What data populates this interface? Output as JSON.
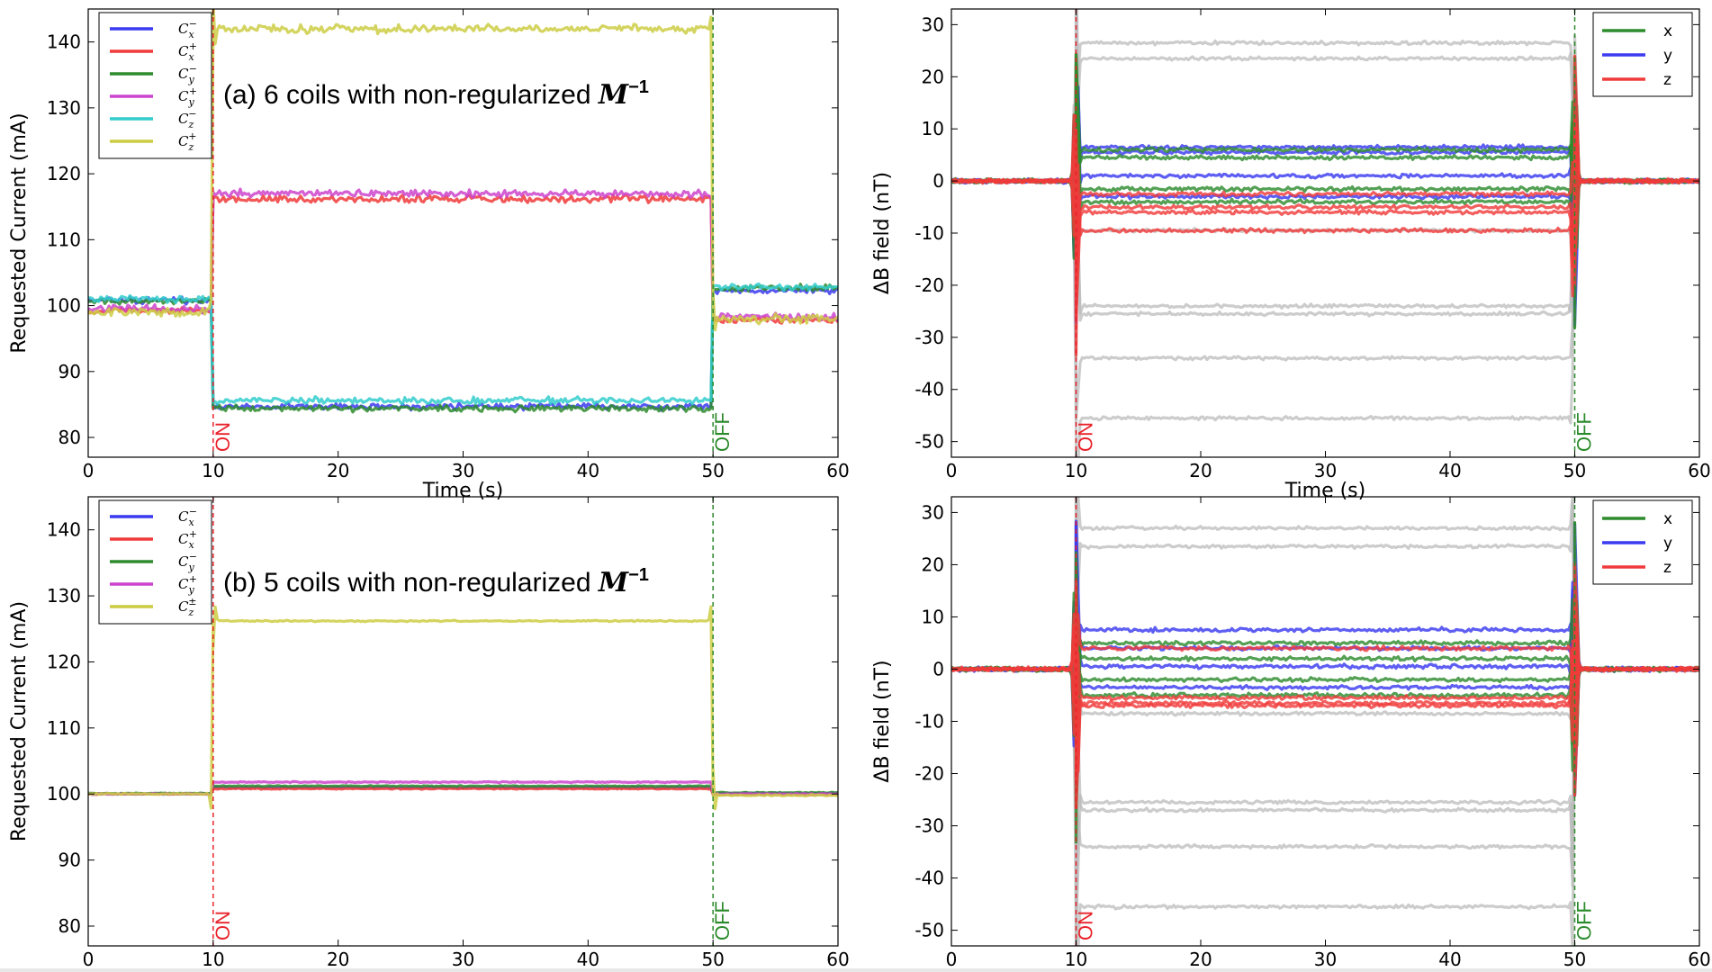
{
  "chart_data": [
    {
      "type": "line",
      "panel": "a-current",
      "annotation": "(a) 6 coils with non-regularized ",
      "annotation_math": "M",
      "annotation_sup": "−1",
      "xlabel": "Time (s)",
      "ylabel": "Requested Current (mA)",
      "xlim": [
        0,
        60
      ],
      "ylim": [
        77,
        145
      ],
      "xticks": [
        0,
        10,
        20,
        30,
        40,
        50,
        60
      ],
      "yticks": [
        80,
        90,
        100,
        110,
        120,
        130,
        140
      ],
      "grid": false,
      "legend_position": "top-left",
      "markers": [
        {
          "x": 10,
          "label": "ON",
          "color": "#e8222a"
        },
        {
          "x": 50,
          "label": "OFF",
          "color": "#2a8a2a"
        }
      ],
      "series": [
        {
          "name": "C",
          "sub": "x",
          "sup": "−",
          "color": "#3b3bf0",
          "before": 100.8,
          "during": 84.7,
          "after": 102.3,
          "noise": 0.7
        },
        {
          "name": "C",
          "sub": "x",
          "sup": "+",
          "color": "#f03b3b",
          "before": 99.2,
          "during": 116.2,
          "after": 97.8,
          "noise": 0.8
        },
        {
          "name": "C",
          "sub": "y",
          "sup": "−",
          "color": "#2e8b2e",
          "before": 100.6,
          "during": 84.4,
          "after": 102.6,
          "noise": 0.7
        },
        {
          "name": "C",
          "sub": "y",
          "sup": "+",
          "color": "#cc44cc",
          "before": 99.5,
          "during": 117.0,
          "after": 98.3,
          "noise": 0.8
        },
        {
          "name": "C",
          "sub": "z",
          "sup": "−",
          "color": "#33cccc",
          "before": 101.0,
          "during": 85.6,
          "after": 102.8,
          "noise": 0.7
        },
        {
          "name": "C",
          "sub": "z",
          "sup": "+",
          "color": "#cccc44",
          "before": 99.0,
          "during": 142.0,
          "after": 98.0,
          "noise": 0.9
        }
      ]
    },
    {
      "type": "line",
      "panel": "a-field",
      "xlabel": "Time (s)",
      "ylabel": "ΔB field (nT)",
      "xlim": [
        0,
        60
      ],
      "ylim": [
        -53,
        33
      ],
      "xticks": [
        0,
        10,
        20,
        30,
        40,
        50,
        60
      ],
      "yticks": [
        -50,
        -40,
        -30,
        -20,
        -10,
        0,
        10,
        20,
        30
      ],
      "grid": false,
      "legend_position": "top-right",
      "markers": [
        {
          "x": 10,
          "label": "ON",
          "color": "#e8222a"
        },
        {
          "x": 50,
          "label": "OFF",
          "color": "#2a8a2a"
        }
      ],
      "legend": [
        {
          "name": "x",
          "color": "#2e8b2e"
        },
        {
          "name": "y",
          "color": "#3b3bf0"
        },
        {
          "name": "z",
          "color": "#f03b3b"
        }
      ],
      "traces": [
        {
          "color": "#bbbbbb",
          "level": 26.5
        },
        {
          "color": "#bbbbbb",
          "level": 23.5
        },
        {
          "color": "#bbbbbb",
          "level": -9.5
        },
        {
          "color": "#bbbbbb",
          "level": -24.0
        },
        {
          "color": "#bbbbbb",
          "level": -25.5
        },
        {
          "color": "#bbbbbb",
          "level": -34.0
        },
        {
          "color": "#bbbbbb",
          "level": -45.5
        },
        {
          "color": "#3b3bf0",
          "level": 6.5
        },
        {
          "color": "#3b3bf0",
          "level": 5.5
        },
        {
          "color": "#3b3bf0",
          "level": 1.0
        },
        {
          "color": "#3b3bf0",
          "level": -3.0
        },
        {
          "color": "#2e8b2e",
          "level": 6.0
        },
        {
          "color": "#2e8b2e",
          "level": 4.5
        },
        {
          "color": "#2e8b2e",
          "level": -1.5
        },
        {
          "color": "#2e8b2e",
          "level": -4.0
        },
        {
          "color": "#f03b3b",
          "level": -2.5
        },
        {
          "color": "#f03b3b",
          "level": -5.0
        },
        {
          "color": "#f03b3b",
          "level": -6.0
        },
        {
          "color": "#f03b3b",
          "level": -9.5
        }
      ]
    },
    {
      "type": "line",
      "panel": "b-current",
      "annotation": "(b) 5 coils with non-regularized ",
      "annotation_math": "M",
      "annotation_sup": "−1",
      "xlabel": "Time (s)",
      "ylabel": "Requested Current (mA)",
      "xlim": [
        0,
        60
      ],
      "ylim": [
        77,
        145
      ],
      "xticks": [
        0,
        10,
        20,
        30,
        40,
        50,
        60
      ],
      "yticks": [
        80,
        90,
        100,
        110,
        120,
        130,
        140
      ],
      "grid": false,
      "legend_position": "top-left",
      "markers": [
        {
          "x": 10,
          "label": "ON",
          "color": "#e8222a"
        },
        {
          "x": 50,
          "label": "OFF",
          "color": "#2a8a2a"
        }
      ],
      "series": [
        {
          "name": "C",
          "sub": "x",
          "sup": "−",
          "color": "#3b3bf0",
          "before": 100.0,
          "during": 101.0,
          "after": 100.1,
          "noise": 0.12
        },
        {
          "name": "C",
          "sub": "x",
          "sup": "+",
          "color": "#f03b3b",
          "before": 100.0,
          "during": 100.8,
          "after": 99.9,
          "noise": 0.12
        },
        {
          "name": "C",
          "sub": "y",
          "sup": "−",
          "color": "#2e8b2e",
          "before": 100.1,
          "during": 101.2,
          "after": 100.2,
          "noise": 0.12
        },
        {
          "name": "C",
          "sub": "y",
          "sup": "+",
          "color": "#cc44cc",
          "before": 100.0,
          "during": 101.8,
          "after": 100.0,
          "noise": 0.12
        },
        {
          "name": "C",
          "sub": "z",
          "sup": "±",
          "color": "#cccc44",
          "before": 100.0,
          "during": 126.2,
          "after": 99.8,
          "noise": 0.15
        }
      ]
    },
    {
      "type": "line",
      "panel": "b-field",
      "xlabel": "Time (s)",
      "ylabel": "ΔB field (nT)",
      "xlim": [
        0,
        60
      ],
      "ylim": [
        -53,
        33
      ],
      "xticks": [
        0,
        10,
        20,
        30,
        40,
        50,
        60
      ],
      "yticks": [
        -50,
        -40,
        -30,
        -20,
        -10,
        0,
        10,
        20,
        30
      ],
      "grid": false,
      "legend_position": "top-right",
      "markers": [
        {
          "x": 10,
          "label": "ON",
          "color": "#e8222a"
        },
        {
          "x": 50,
          "label": "OFF",
          "color": "#2a8a2a"
        }
      ],
      "legend": [
        {
          "name": "x",
          "color": "#2e8b2e"
        },
        {
          "name": "y",
          "color": "#3b3bf0"
        },
        {
          "name": "z",
          "color": "#f03b3b"
        }
      ],
      "traces": [
        {
          "color": "#bbbbbb",
          "level": 27.0
        },
        {
          "color": "#bbbbbb",
          "level": 23.5
        },
        {
          "color": "#bbbbbb",
          "level": -8.5
        },
        {
          "color": "#bbbbbb",
          "level": -25.5
        },
        {
          "color": "#bbbbbb",
          "level": -27.0
        },
        {
          "color": "#bbbbbb",
          "level": -34.0
        },
        {
          "color": "#bbbbbb",
          "level": -45.5
        },
        {
          "color": "#3b3bf0",
          "level": 7.5
        },
        {
          "color": "#3b3bf0",
          "level": 4.0
        },
        {
          "color": "#3b3bf0",
          "level": 0.5
        },
        {
          "color": "#3b3bf0",
          "level": -3.5
        },
        {
          "color": "#2e8b2e",
          "level": 5.0
        },
        {
          "color": "#2e8b2e",
          "level": 2.0
        },
        {
          "color": "#2e8b2e",
          "level": -2.0
        },
        {
          "color": "#2e8b2e",
          "level": -5.0
        },
        {
          "color": "#f03b3b",
          "level": 4.0
        },
        {
          "color": "#f03b3b",
          "level": -5.5
        },
        {
          "color": "#f03b3b",
          "level": -6.5
        },
        {
          "color": "#f03b3b",
          "level": -7.0
        }
      ]
    }
  ]
}
